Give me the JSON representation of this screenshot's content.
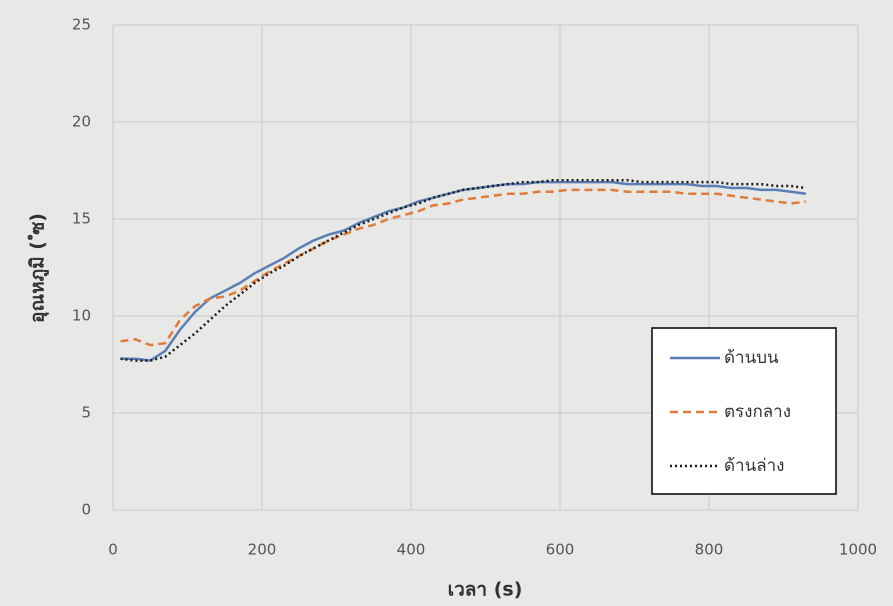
{
  "chart_data": {
    "type": "line",
    "x_label": "เวลา (s)",
    "y_label": "อุณหภูมิ ( ํซ)",
    "x": [
      10,
      30,
      50,
      70,
      90,
      110,
      130,
      150,
      170,
      190,
      210,
      230,
      250,
      270,
      290,
      310,
      330,
      350,
      370,
      390,
      410,
      430,
      450,
      470,
      490,
      510,
      530,
      550,
      570,
      590,
      610,
      630,
      650,
      670,
      690,
      710,
      730,
      750,
      770,
      790,
      810,
      830,
      850,
      870,
      890,
      910,
      930
    ],
    "series": [
      {
        "name": "ด้านบน",
        "color": "#5b7fb5",
        "dash": "solid",
        "values": [
          7.8,
          7.8,
          7.7,
          8.2,
          9.3,
          10.2,
          10.9,
          11.3,
          11.7,
          12.2,
          12.6,
          13.0,
          13.5,
          13.9,
          14.2,
          14.4,
          14.8,
          15.1,
          15.4,
          15.6,
          15.9,
          16.1,
          16.3,
          16.5,
          16.6,
          16.7,
          16.8,
          16.8,
          16.9,
          16.9,
          16.9,
          16.9,
          16.9,
          16.9,
          16.8,
          16.8,
          16.8,
          16.8,
          16.8,
          16.7,
          16.7,
          16.6,
          16.6,
          16.5,
          16.5,
          16.4,
          16.3
        ]
      },
      {
        "name": "ตรงกลาง",
        "color": "#e07b39",
        "dash": "dashed",
        "values": [
          8.7,
          8.8,
          8.5,
          8.6,
          9.8,
          10.5,
          10.9,
          11.0,
          11.3,
          11.8,
          12.3,
          12.7,
          13.1,
          13.5,
          13.9,
          14.2,
          14.5,
          14.7,
          15.0,
          15.2,
          15.4,
          15.7,
          15.8,
          16.0,
          16.1,
          16.2,
          16.3,
          16.3,
          16.4,
          16.4,
          16.5,
          16.5,
          16.5,
          16.5,
          16.4,
          16.4,
          16.4,
          16.4,
          16.3,
          16.3,
          16.3,
          16.2,
          16.1,
          16.0,
          15.9,
          15.8,
          15.9
        ]
      },
      {
        "name": "ด้านล่าง",
        "color": "#1a1a1a",
        "dash": "dotted",
        "values": [
          7.8,
          7.7,
          7.7,
          7.9,
          8.5,
          9.1,
          9.8,
          10.5,
          11.1,
          11.7,
          12.2,
          12.6,
          13.1,
          13.5,
          13.9,
          14.3,
          14.7,
          15.0,
          15.3,
          15.6,
          15.8,
          16.1,
          16.3,
          16.5,
          16.6,
          16.7,
          16.8,
          16.9,
          16.9,
          17.0,
          17.0,
          17.0,
          17.0,
          17.0,
          17.0,
          16.9,
          16.9,
          16.9,
          16.9,
          16.9,
          16.9,
          16.8,
          16.8,
          16.8,
          16.7,
          16.7,
          16.6
        ]
      }
    ],
    "xlim": [
      0,
      1000
    ],
    "xticks": [
      0,
      200,
      400,
      600,
      800,
      1000
    ],
    "ylim": [
      0,
      25
    ],
    "yticks": [
      0,
      5,
      10,
      15,
      20,
      25
    ],
    "grid": true,
    "legend": "right"
  }
}
